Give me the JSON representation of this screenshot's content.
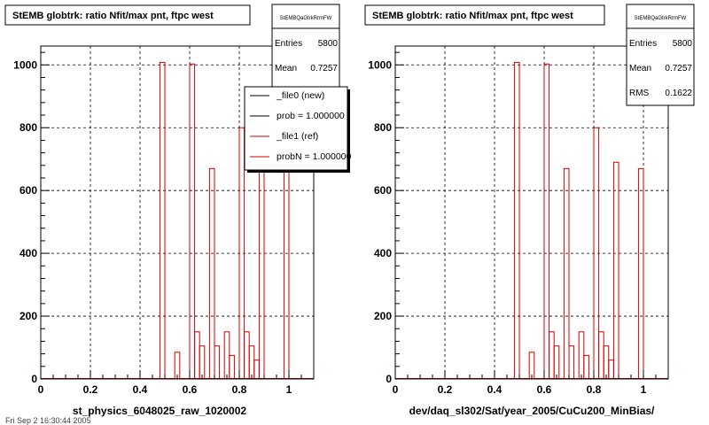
{
  "footer_text": "Fri Sep 2 16:30:44 2005",
  "colors": {
    "ref": "#cc0000",
    "new": "#000000",
    "grid": "#000000"
  },
  "stats_labels": {
    "entries": "Entries",
    "mean": "Mean",
    "rms": "RMS"
  },
  "legend": {
    "entries": [
      {
        "label": "_file0 (new)",
        "color": "#000000"
      },
      {
        "label": "prob = 1.000000",
        "color": "#000000"
      },
      {
        "label": "_file1 (ref)",
        "color": "#cc0000"
      },
      {
        "label": "probN = 1.000000",
        "color": "#cc0000"
      }
    ]
  },
  "chart_data": [
    {
      "type": "bar",
      "title": "StEMB globtrk: ratio Nfit/max pnt, ftpc west",
      "xlabel": "st_physics_6048025_raw_1020002",
      "ylabel": "",
      "xlim": [
        0,
        1.1
      ],
      "ylim": [
        0,
        1060
      ],
      "xticks": [
        0,
        0.2,
        0.4,
        0.6,
        0.8,
        1
      ],
      "yticks": [
        0,
        200,
        400,
        600,
        800,
        1000
      ],
      "grid": true,
      "stats": {
        "name": "StEMBQaGtrkRrmFW",
        "entries": "5800",
        "mean": "0.7257"
      },
      "legend_position": "top-right",
      "series": [
        {
          "name": "_file1 (ref)",
          "color": "#cc0000",
          "bin_width": 0.02,
          "bins": [
            [
              0.48,
              1008
            ],
            [
              0.54,
              85
            ],
            [
              0.6,
              1003
            ],
            [
              0.62,
              150
            ],
            [
              0.64,
              105
            ],
            [
              0.68,
              670
            ],
            [
              0.7,
              105
            ],
            [
              0.74,
              150
            ],
            [
              0.76,
              75
            ],
            [
              0.8,
              800
            ],
            [
              0.82,
              150
            ],
            [
              0.84,
              105
            ],
            [
              0.86,
              60
            ],
            [
              0.88,
              690
            ],
            [
              0.98,
              670
            ]
          ]
        },
        {
          "name": "_file0 (new)",
          "color": "#000000",
          "bin_width": 0.02,
          "bins": []
        }
      ]
    },
    {
      "type": "bar",
      "title": "StEMB globtrk: ratio Nfit/max pnt, ftpc west",
      "xlabel": "dev/daq_sl302/Sat/year_2005/CuCu200_MinBias/",
      "ylabel": "",
      "xlim": [
        0,
        1.1
      ],
      "ylim": [
        0,
        1060
      ],
      "xticks": [
        0,
        0.2,
        0.4,
        0.6,
        0.8,
        1
      ],
      "yticks": [
        0,
        200,
        400,
        600,
        800,
        1000
      ],
      "grid": true,
      "stats": {
        "name": "StEMBQaGtrkRrmFW",
        "entries": "5800",
        "mean": "0.7257",
        "rms": "0.1622"
      },
      "series": [
        {
          "name": "",
          "color": "#cc0000",
          "bin_width": 0.02,
          "bins": [
            [
              0.48,
              1008
            ],
            [
              0.54,
              85
            ],
            [
              0.6,
              1003
            ],
            [
              0.62,
              150
            ],
            [
              0.64,
              105
            ],
            [
              0.68,
              670
            ],
            [
              0.7,
              105
            ],
            [
              0.74,
              150
            ],
            [
              0.76,
              75
            ],
            [
              0.8,
              800
            ],
            [
              0.82,
              150
            ],
            [
              0.84,
              105
            ],
            [
              0.86,
              60
            ],
            [
              0.88,
              690
            ],
            [
              0.98,
              670
            ]
          ]
        }
      ]
    }
  ]
}
